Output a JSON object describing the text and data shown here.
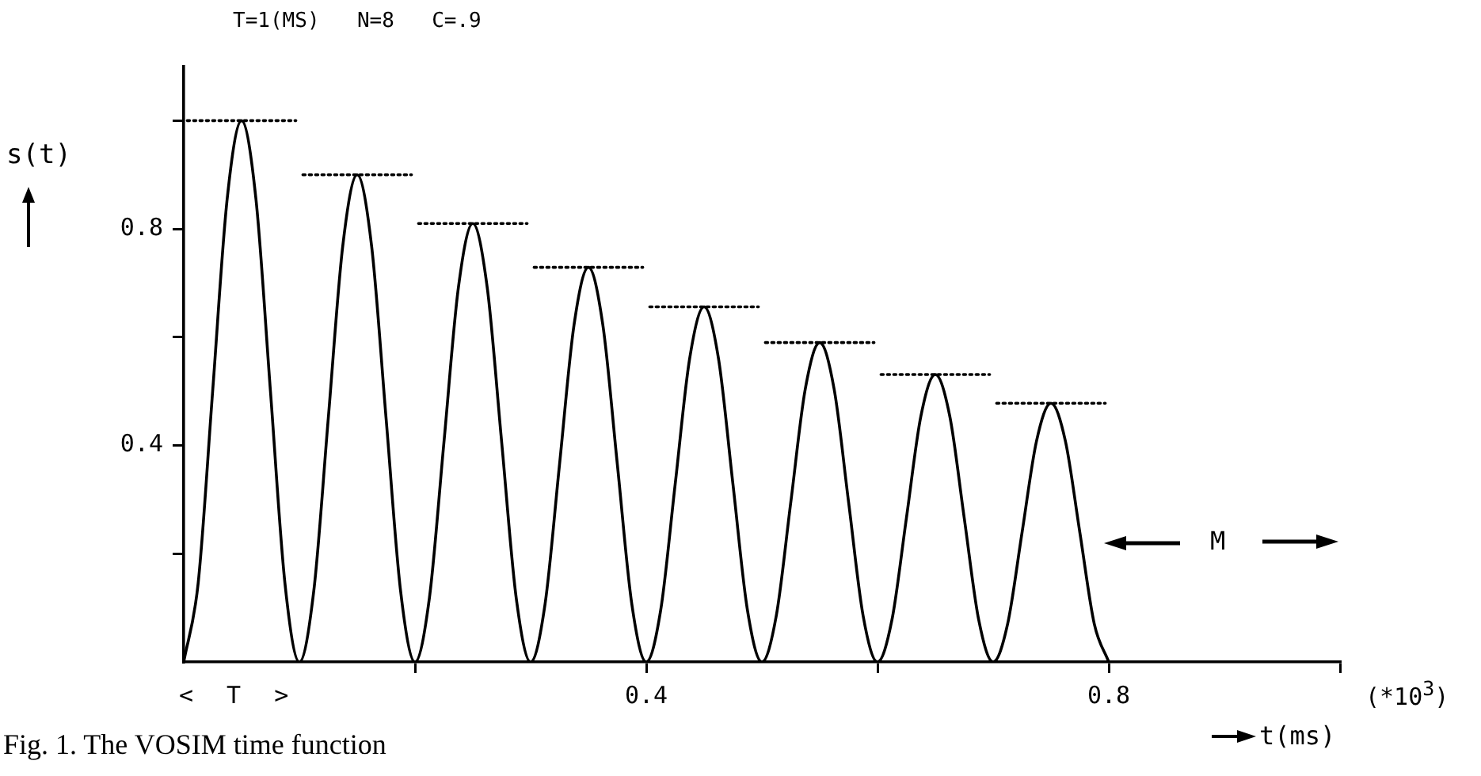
{
  "chart_data": {
    "type": "line",
    "title": "T=1(MS)  N=8  C=.9",
    "xlabel": "t(ms)",
    "ylabel": "s(t)",
    "annotations": [
      "< T >",
      "M",
      "(*10$^{3}$)",
      "Fig. 1. The VOSIM time function"
    ],
    "xlim": [
      0,
      1.0
    ],
    "xticks": [
      {
        "value": 0.2,
        "label": null
      },
      0.4,
      {
        "value": 0.6,
        "label": null
      },
      0.8,
      {
        "value": 1.0,
        "label": null
      }
    ],
    "ylim": [
      0,
      1.1
    ],
    "yticks": [
      {
        "value": 0.2,
        "label": null
      },
      0.4,
      {
        "value": 0.6,
        "label": null
      },
      0.8,
      {
        "value": 1.0,
        "label": null
      }
    ],
    "marker": "none",
    "series": [
      {
        "color": "#000000",
        "line_style": "solid",
        "x": [
          0,
          0.0125,
          0.025,
          0.0375,
          0.05,
          0.0625,
          0.075,
          0.0875,
          0.1,
          0.1125,
          0.125,
          0.1375,
          0.15,
          0.1625,
          0.175,
          0.1875,
          0.2,
          0.2125,
          0.225,
          0.2375,
          0.25,
          0.2625,
          0.275,
          0.2875,
          0.3,
          0.3125,
          0.325,
          0.3375,
          0.35,
          0.3625,
          0.375,
          0.3875,
          0.4,
          0.4125,
          0.425,
          0.4375,
          0.45,
          0.4625,
          0.475,
          0.4875,
          0.5,
          0.5125,
          0.525,
          0.5375,
          0.55,
          0.5625,
          0.575,
          0.5875,
          0.6,
          0.6125,
          0.625,
          0.6375,
          0.65,
          0.6625,
          0.675,
          0.6875,
          0.7,
          0.7125,
          0.725,
          0.7375,
          0.75,
          0.7625,
          0.775,
          0.7875,
          0.8
        ],
        "values": [
          0,
          0.146,
          0.5,
          0.854,
          1,
          0.854,
          0.5,
          0.146,
          0,
          0.132,
          0.45,
          0.768,
          0.9,
          0.768,
          0.45,
          0.132,
          0,
          0.119,
          0.405,
          0.691,
          0.81,
          0.691,
          0.405,
          0.119,
          0,
          0.107,
          0.365,
          0.622,
          0.729,
          0.622,
          0.365,
          0.107,
          0,
          0.096,
          0.328,
          0.56,
          0.656,
          0.56,
          0.328,
          0.096,
          0,
          0.086,
          0.295,
          0.504,
          0.59,
          0.504,
          0.295,
          0.086,
          0,
          0.078,
          0.266,
          0.454,
          0.531,
          0.454,
          0.266,
          0.078,
          0,
          0.07,
          0.239,
          0.408,
          0.478,
          0.408,
          0.239,
          0.07,
          0
        ]
      },
      {
        "color": "#000000",
        "line_style": "dotted",
        "x": [
          0.003,
          0.097,
          0.098,
          0.103,
          0.197,
          0.198,
          0.203,
          0.297,
          0.298,
          0.303,
          0.397,
          0.398,
          0.403,
          0.497,
          0.498,
          0.503,
          0.597,
          0.598,
          0.603,
          0.697,
          0.698,
          0.703,
          0.797
        ],
        "values": [
          1,
          1,
          null,
          0.9,
          0.9,
          null,
          0.81,
          0.81,
          null,
          0.729,
          0.729,
          null,
          0.656,
          0.656,
          null,
          0.59,
          0.59,
          null,
          0.531,
          0.531,
          null,
          0.478,
          0.478
        ]
      }
    ]
  }
}
